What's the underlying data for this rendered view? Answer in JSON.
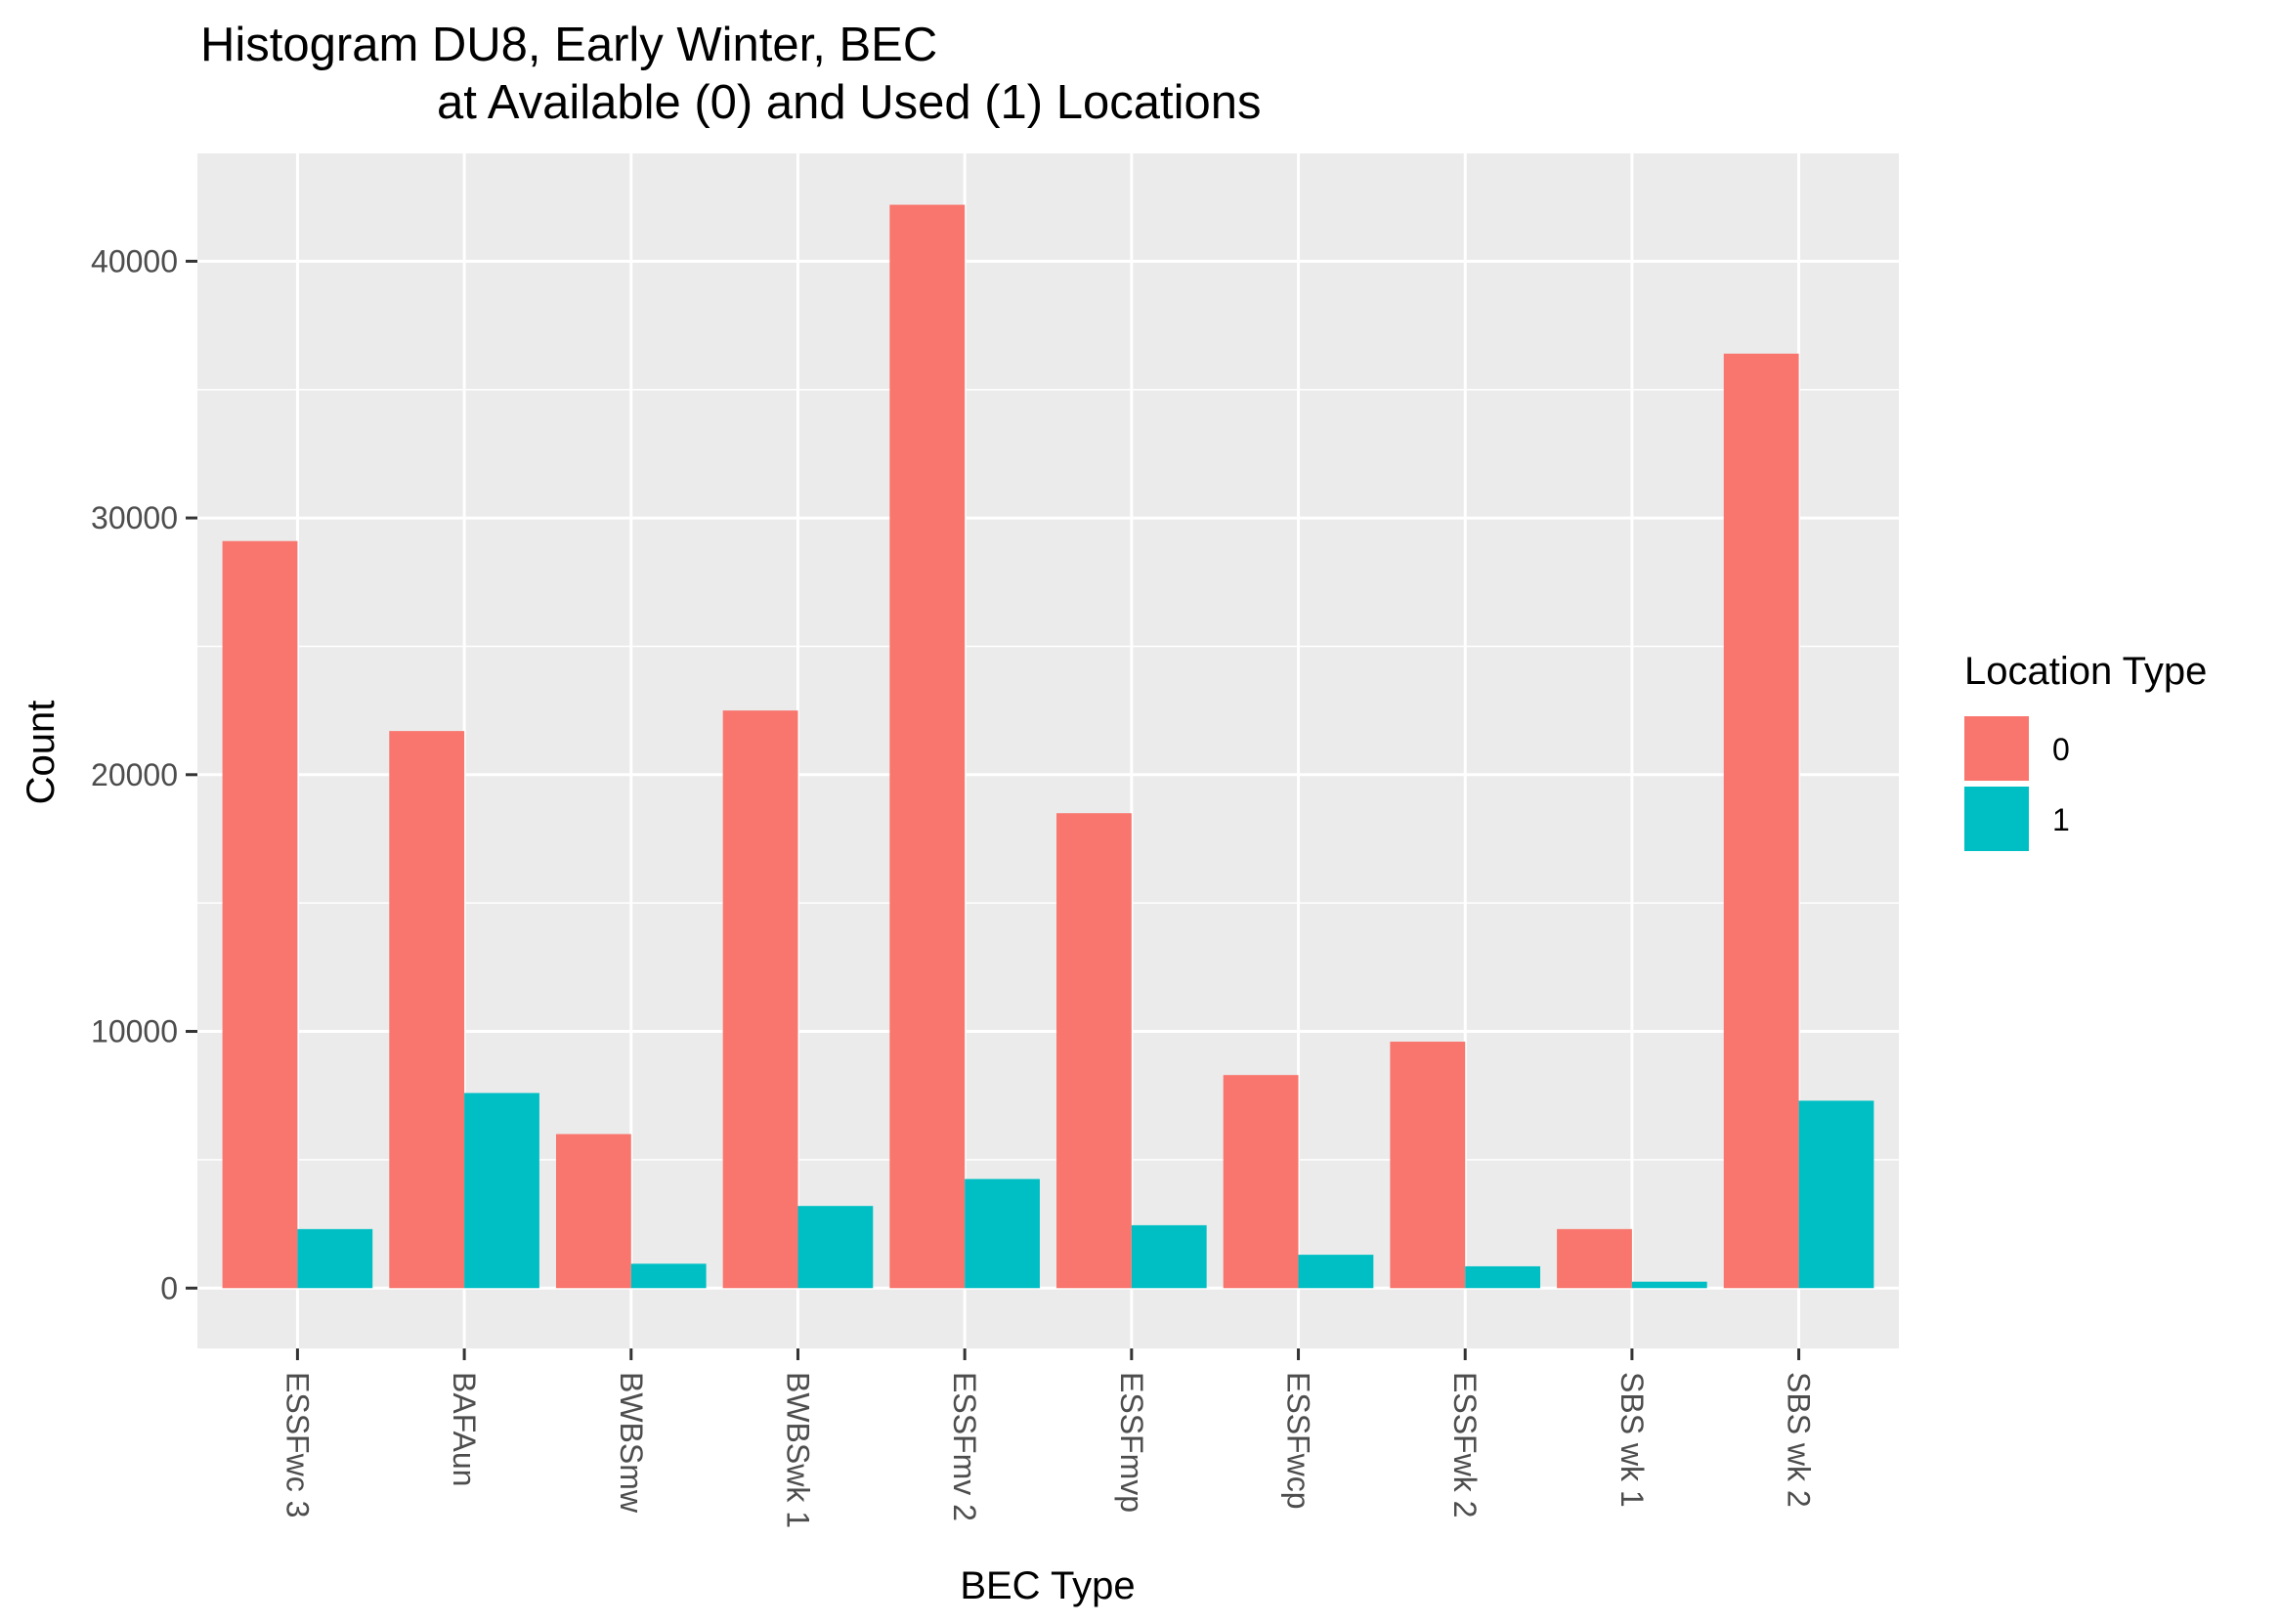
{
  "chart_data": {
    "type": "bar",
    "title_line1": "Histogram DU8, Early Winter, BEC",
    "title_line2": "at Available (0) and Used (1) Locations",
    "xlabel": "BEC Type",
    "ylabel": "Count",
    "categories": [
      "ESSFwc 3",
      "BAFAun",
      "BWBSmw",
      "BWBSwk 1",
      "ESSFmv 2",
      "ESSFmvp",
      "ESSFwcp",
      "ESSFwk 2",
      "SBS wk 1",
      "SBS wk 2"
    ],
    "series": [
      {
        "name": "0",
        "values": [
          29100,
          21700,
          6000,
          22500,
          42200,
          18500,
          8300,
          9600,
          2300,
          36400
        ]
      },
      {
        "name": "1",
        "values": [
          2300,
          7600,
          950,
          3200,
          4250,
          2450,
          1300,
          850,
          250,
          7300
        ]
      }
    ],
    "ylim": [
      -2350,
      44200
    ],
    "y_ticks": [
      0,
      10000,
      20000,
      30000,
      40000
    ],
    "y_tick_labels": [
      "0",
      "10000",
      "20000",
      "30000",
      "40000"
    ],
    "grid": true,
    "legend": {
      "title": "Location Type",
      "position": "right"
    },
    "colors": {
      "0": "#F8766D",
      "1": "#00BFC4",
      "panel": "#EBEBEB",
      "grid": "#FFFFFF"
    }
  }
}
